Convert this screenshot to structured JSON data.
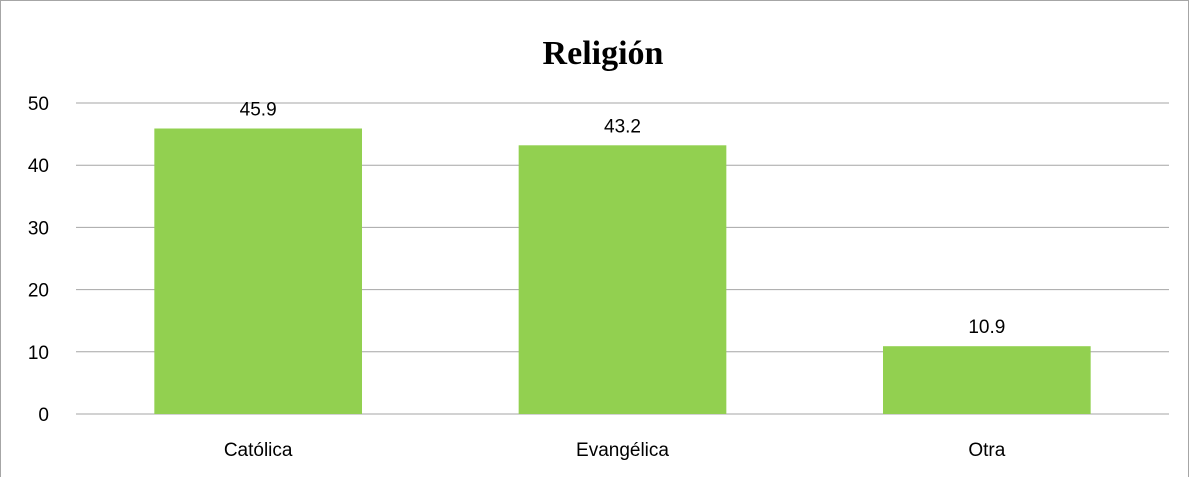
{
  "chart_data": {
    "type": "bar",
    "title": "Religión",
    "categories": [
      "Católica",
      "Evangélica",
      "Otra"
    ],
    "values": [
      45.9,
      43.2,
      10.9
    ],
    "data_labels": [
      "45.9",
      "43.2",
      "10.9"
    ],
    "ylim": [
      0,
      50
    ],
    "yticks": [
      0,
      10,
      20,
      30,
      40,
      50
    ],
    "xlabel": "",
    "ylabel": "",
    "grid": true,
    "legend": "none",
    "bar_color": "#92d050",
    "grid_color": "#a6a6a6"
  }
}
